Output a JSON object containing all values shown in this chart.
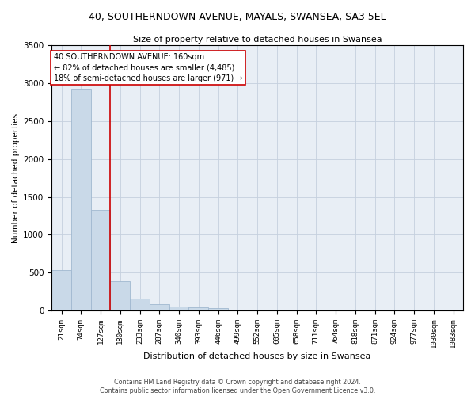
{
  "title": "40, SOUTHERNDOWN AVENUE, MAYALS, SWANSEA, SA3 5EL",
  "subtitle": "Size of property relative to detached houses in Swansea",
  "xlabel": "Distribution of detached houses by size in Swansea",
  "ylabel": "Number of detached properties",
  "bin_labels": [
    "21sqm",
    "74sqm",
    "127sqm",
    "180sqm",
    "233sqm",
    "287sqm",
    "340sqm",
    "393sqm",
    "446sqm",
    "499sqm",
    "552sqm",
    "605sqm",
    "658sqm",
    "711sqm",
    "764sqm",
    "818sqm",
    "871sqm",
    "924sqm",
    "977sqm",
    "1030sqm",
    "1083sqm"
  ],
  "bar_heights": [
    530,
    2920,
    1330,
    390,
    155,
    80,
    55,
    45,
    35,
    0,
    0,
    0,
    0,
    0,
    0,
    0,
    0,
    0,
    0,
    0,
    0
  ],
  "bar_color": "#c9d9e8",
  "bar_edgecolor": "#a0b8d0",
  "vline_color": "#cc0000",
  "ylim": [
    0,
    3500
  ],
  "yticks": [
    0,
    500,
    1000,
    1500,
    2000,
    2500,
    3000,
    3500
  ],
  "annotation_text": "40 SOUTHERNDOWN AVENUE: 160sqm\n← 82% of detached houses are smaller (4,485)\n18% of semi-detached houses are larger (971) →",
  "annotation_box_color": "#ffffff",
  "annotation_box_edgecolor": "#cc0000",
  "footer_line1": "Contains HM Land Registry data © Crown copyright and database right 2024.",
  "footer_line2": "Contains public sector information licensed under the Open Government Licence v3.0.",
  "axes_bg_color": "#e8eef5",
  "fig_bg_color": "#ffffff",
  "grid_color": "#c5d0de"
}
